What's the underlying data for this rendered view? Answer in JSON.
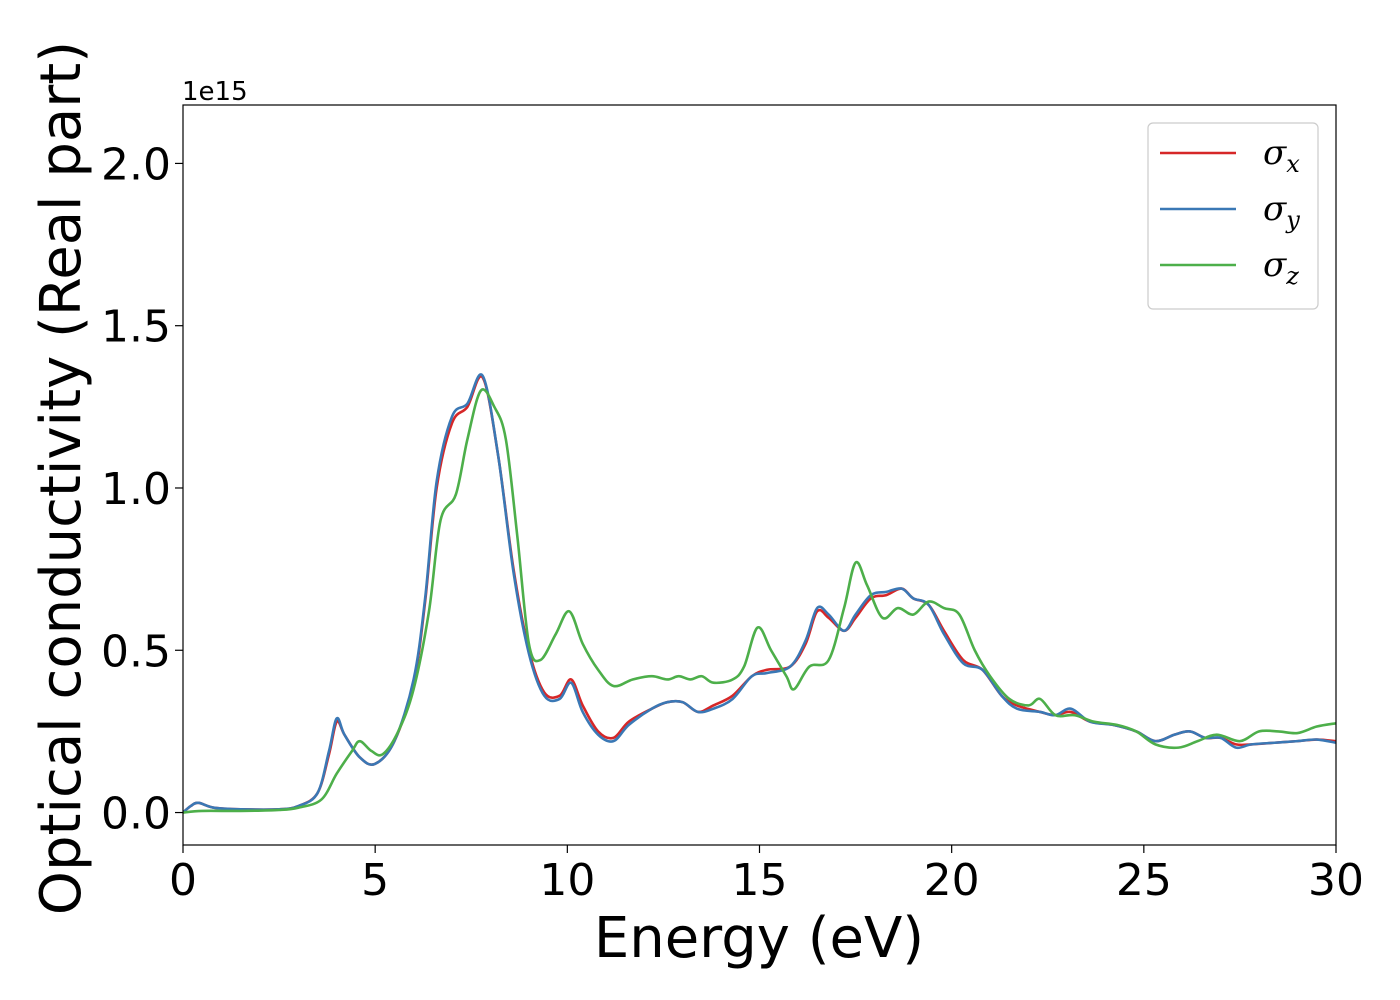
{
  "chart_data": {
    "type": "line",
    "xlabel": "Energy (eV)",
    "ylabel": "Optical conductivity (Real part)",
    "y_offset_label": "1e15",
    "xlim": [
      0,
      30
    ],
    "ylim": [
      -0.1,
      2.18
    ],
    "x_ticks": [
      0,
      5,
      10,
      15,
      20,
      25,
      30
    ],
    "x_tick_labels": [
      "0",
      "5",
      "10",
      "15",
      "20",
      "25",
      "30"
    ],
    "y_ticks": [
      0.0,
      0.5,
      1.0,
      1.5,
      2.0
    ],
    "y_tick_labels": [
      "0.0",
      "0.5",
      "1.0",
      "1.5",
      "2.0"
    ],
    "grid": false,
    "legend_position": "top-right",
    "series": [
      {
        "name": "σx",
        "symbol": "σ",
        "subscript": "x",
        "color": "#d62728",
        "points": [
          [
            0,
            0
          ],
          [
            0.2,
            0.02
          ],
          [
            0.4,
            0.03
          ],
          [
            0.8,
            0.015
          ],
          [
            1.5,
            0.01
          ],
          [
            2.5,
            0.01
          ],
          [
            3.0,
            0.02
          ],
          [
            3.5,
            0.06
          ],
          [
            3.8,
            0.18
          ],
          [
            4.0,
            0.28
          ],
          [
            4.2,
            0.24
          ],
          [
            4.6,
            0.17
          ],
          [
            5.0,
            0.15
          ],
          [
            5.5,
            0.22
          ],
          [
            6.0,
            0.4
          ],
          [
            6.3,
            0.65
          ],
          [
            6.6,
            1.0
          ],
          [
            7.0,
            1.2
          ],
          [
            7.4,
            1.25
          ],
          [
            7.8,
            1.34
          ],
          [
            8.2,
            1.1
          ],
          [
            8.6,
            0.75
          ],
          [
            9.0,
            0.5
          ],
          [
            9.4,
            0.37
          ],
          [
            9.8,
            0.36
          ],
          [
            10.1,
            0.41
          ],
          [
            10.4,
            0.33
          ],
          [
            10.8,
            0.25
          ],
          [
            11.2,
            0.23
          ],
          [
            11.6,
            0.28
          ],
          [
            12.2,
            0.32
          ],
          [
            12.6,
            0.34
          ],
          [
            13.0,
            0.34
          ],
          [
            13.4,
            0.31
          ],
          [
            13.8,
            0.33
          ],
          [
            14.3,
            0.36
          ],
          [
            14.8,
            0.42
          ],
          [
            15.2,
            0.44
          ],
          [
            15.8,
            0.45
          ],
          [
            16.2,
            0.52
          ],
          [
            16.5,
            0.62
          ],
          [
            16.8,
            0.6
          ],
          [
            17.2,
            0.56
          ],
          [
            17.5,
            0.6
          ],
          [
            17.9,
            0.66
          ],
          [
            18.3,
            0.67
          ],
          [
            18.7,
            0.69
          ],
          [
            19.0,
            0.66
          ],
          [
            19.4,
            0.64
          ],
          [
            19.8,
            0.56
          ],
          [
            20.3,
            0.47
          ],
          [
            20.8,
            0.44
          ],
          [
            21.3,
            0.36
          ],
          [
            21.7,
            0.33
          ],
          [
            22.3,
            0.31
          ],
          [
            22.7,
            0.3
          ],
          [
            23.1,
            0.31
          ],
          [
            23.6,
            0.28
          ],
          [
            24.2,
            0.27
          ],
          [
            24.8,
            0.25
          ],
          [
            25.3,
            0.22
          ],
          [
            25.8,
            0.24
          ],
          [
            26.2,
            0.25
          ],
          [
            26.6,
            0.23
          ],
          [
            27.0,
            0.23
          ],
          [
            27.4,
            0.21
          ],
          [
            27.8,
            0.21
          ],
          [
            28.4,
            0.215
          ],
          [
            29.0,
            0.22
          ],
          [
            29.5,
            0.225
          ],
          [
            30.0,
            0.22
          ]
        ]
      },
      {
        "name": "σy",
        "symbol": "σ",
        "subscript": "y",
        "color": "#3a78b5",
        "points": [
          [
            0,
            0
          ],
          [
            0.2,
            0.02
          ],
          [
            0.4,
            0.03
          ],
          [
            0.8,
            0.015
          ],
          [
            1.5,
            0.01
          ],
          [
            2.5,
            0.01
          ],
          [
            3.0,
            0.02
          ],
          [
            3.5,
            0.06
          ],
          [
            3.8,
            0.19
          ],
          [
            4.0,
            0.29
          ],
          [
            4.2,
            0.24
          ],
          [
            4.6,
            0.17
          ],
          [
            5.0,
            0.15
          ],
          [
            5.5,
            0.22
          ],
          [
            6.0,
            0.41
          ],
          [
            6.3,
            0.66
          ],
          [
            6.6,
            1.02
          ],
          [
            7.0,
            1.22
          ],
          [
            7.4,
            1.26
          ],
          [
            7.8,
            1.345
          ],
          [
            8.2,
            1.1
          ],
          [
            8.6,
            0.74
          ],
          [
            9.0,
            0.49
          ],
          [
            9.4,
            0.36
          ],
          [
            9.8,
            0.35
          ],
          [
            10.1,
            0.4
          ],
          [
            10.4,
            0.31
          ],
          [
            10.8,
            0.24
          ],
          [
            11.2,
            0.22
          ],
          [
            11.6,
            0.27
          ],
          [
            12.2,
            0.32
          ],
          [
            12.6,
            0.34
          ],
          [
            13.0,
            0.34
          ],
          [
            13.4,
            0.31
          ],
          [
            13.8,
            0.32
          ],
          [
            14.3,
            0.35
          ],
          [
            14.8,
            0.42
          ],
          [
            15.2,
            0.43
          ],
          [
            15.8,
            0.45
          ],
          [
            16.2,
            0.53
          ],
          [
            16.5,
            0.63
          ],
          [
            16.8,
            0.61
          ],
          [
            17.2,
            0.56
          ],
          [
            17.5,
            0.61
          ],
          [
            17.9,
            0.67
          ],
          [
            18.3,
            0.68
          ],
          [
            18.7,
            0.69
          ],
          [
            19.0,
            0.66
          ],
          [
            19.4,
            0.64
          ],
          [
            19.8,
            0.55
          ],
          [
            20.3,
            0.46
          ],
          [
            20.8,
            0.44
          ],
          [
            21.3,
            0.36
          ],
          [
            21.7,
            0.32
          ],
          [
            22.3,
            0.31
          ],
          [
            22.7,
            0.3
          ],
          [
            23.1,
            0.32
          ],
          [
            23.6,
            0.28
          ],
          [
            24.2,
            0.27
          ],
          [
            24.8,
            0.25
          ],
          [
            25.3,
            0.22
          ],
          [
            25.8,
            0.24
          ],
          [
            26.2,
            0.25
          ],
          [
            26.6,
            0.23
          ],
          [
            27.0,
            0.23
          ],
          [
            27.4,
            0.2
          ],
          [
            27.8,
            0.21
          ],
          [
            28.4,
            0.215
          ],
          [
            29.0,
            0.22
          ],
          [
            29.5,
            0.225
          ],
          [
            30.0,
            0.215
          ]
        ]
      },
      {
        "name": "σz",
        "symbol": "σ",
        "subscript": "z",
        "color": "#4daf4a",
        "points": [
          [
            0,
            0
          ],
          [
            0.5,
            0.005
          ],
          [
            1.5,
            0.005
          ],
          [
            2.5,
            0.008
          ],
          [
            3.0,
            0.015
          ],
          [
            3.6,
            0.04
          ],
          [
            4.0,
            0.12
          ],
          [
            4.4,
            0.19
          ],
          [
            4.6,
            0.22
          ],
          [
            4.9,
            0.19
          ],
          [
            5.2,
            0.18
          ],
          [
            5.6,
            0.25
          ],
          [
            6.0,
            0.38
          ],
          [
            6.4,
            0.62
          ],
          [
            6.7,
            0.9
          ],
          [
            7.1,
            0.98
          ],
          [
            7.4,
            1.15
          ],
          [
            7.75,
            1.3
          ],
          [
            8.1,
            1.25
          ],
          [
            8.4,
            1.15
          ],
          [
            8.7,
            0.85
          ],
          [
            9.0,
            0.52
          ],
          [
            9.3,
            0.47
          ],
          [
            9.7,
            0.55
          ],
          [
            10.05,
            0.62
          ],
          [
            10.4,
            0.52
          ],
          [
            10.8,
            0.44
          ],
          [
            11.2,
            0.39
          ],
          [
            11.7,
            0.41
          ],
          [
            12.2,
            0.42
          ],
          [
            12.6,
            0.41
          ],
          [
            12.9,
            0.42
          ],
          [
            13.2,
            0.41
          ],
          [
            13.5,
            0.42
          ],
          [
            13.8,
            0.4
          ],
          [
            14.3,
            0.41
          ],
          [
            14.6,
            0.45
          ],
          [
            14.95,
            0.57
          ],
          [
            15.3,
            0.5
          ],
          [
            15.7,
            0.42
          ],
          [
            15.9,
            0.38
          ],
          [
            16.3,
            0.45
          ],
          [
            16.8,
            0.47
          ],
          [
            17.2,
            0.63
          ],
          [
            17.5,
            0.77
          ],
          [
            17.8,
            0.7
          ],
          [
            18.2,
            0.6
          ],
          [
            18.6,
            0.63
          ],
          [
            19.0,
            0.61
          ],
          [
            19.4,
            0.65
          ],
          [
            19.8,
            0.63
          ],
          [
            20.2,
            0.61
          ],
          [
            20.6,
            0.5
          ],
          [
            21.0,
            0.42
          ],
          [
            21.5,
            0.35
          ],
          [
            22.0,
            0.33
          ],
          [
            22.3,
            0.35
          ],
          [
            22.7,
            0.3
          ],
          [
            23.2,
            0.3
          ],
          [
            23.7,
            0.28
          ],
          [
            24.3,
            0.27
          ],
          [
            24.8,
            0.25
          ],
          [
            25.3,
            0.21
          ],
          [
            25.9,
            0.2
          ],
          [
            26.4,
            0.22
          ],
          [
            26.9,
            0.24
          ],
          [
            27.5,
            0.22
          ],
          [
            28.0,
            0.25
          ],
          [
            28.5,
            0.25
          ],
          [
            29.0,
            0.245
          ],
          [
            29.5,
            0.265
          ],
          [
            30.0,
            0.275
          ]
        ]
      }
    ]
  }
}
